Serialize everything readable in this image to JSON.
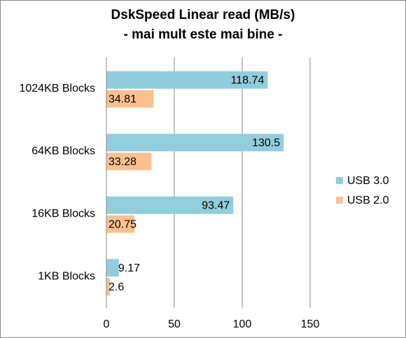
{
  "chart_data": {
    "type": "hbar",
    "title": "DskSpeed Linear read (MB/s)",
    "subtitle": "- mai mult este mai bine -",
    "categories": [
      "1024KB Blocks",
      "64KB Blocks",
      "16KB Blocks",
      "1KB Blocks"
    ],
    "series": [
      {
        "name": "USB 3.0",
        "color": "#92cddc",
        "values": [
          118.74,
          130.5,
          93.47,
          9.17
        ]
      },
      {
        "name": "USB 2.0",
        "color": "#fac090",
        "values": [
          34.81,
          33.28,
          20.75,
          2.6
        ]
      }
    ],
    "xlim": [
      0,
      150
    ],
    "xticks": [
      0,
      50,
      100,
      150
    ],
    "grid": true,
    "legend": "right"
  }
}
